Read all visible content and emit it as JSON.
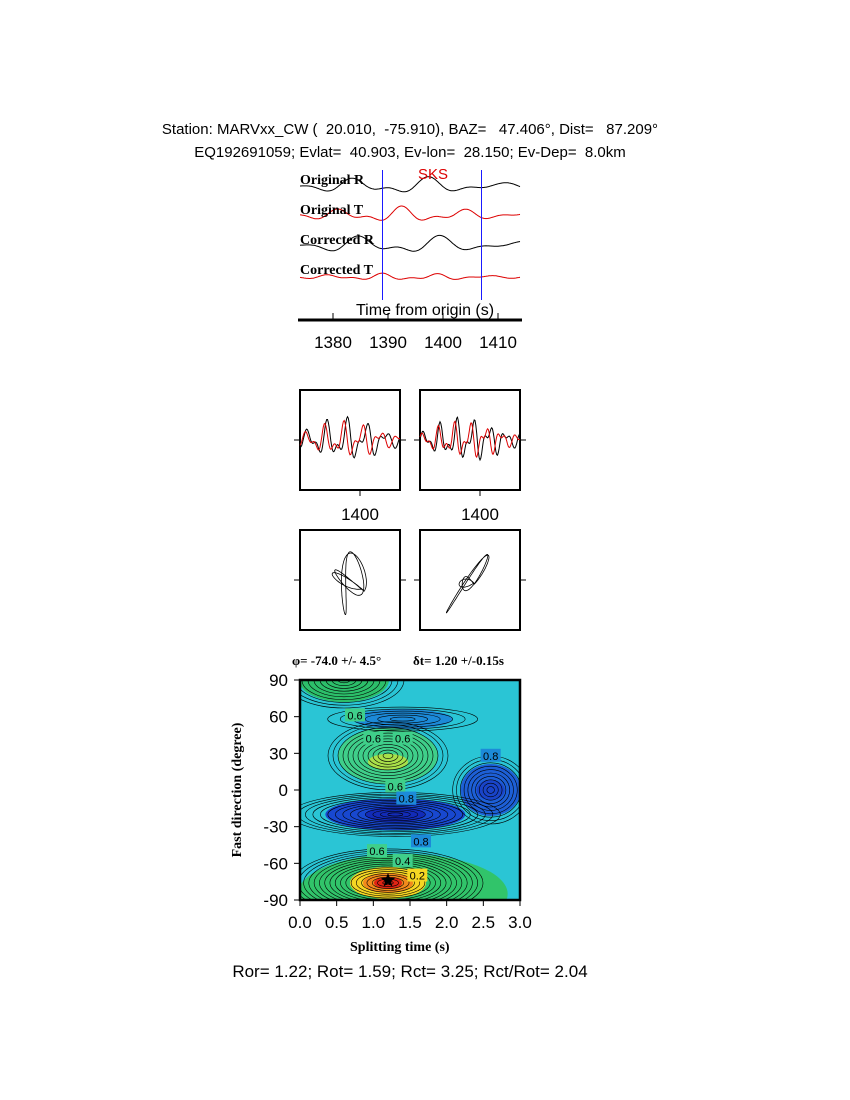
{
  "header": {
    "station_line": "Station: MARVxx_CW (  20.010,  -75.910), BAZ=   47.406°, Dist=   87.209°",
    "event_line": "EQ192691059; Evlat=  40.903, Ev-lon=  28.150; Ev-Dep=  8.0km"
  },
  "colors": {
    "trace_black": "#000000",
    "trace_red": "#dd0000",
    "marker_blue": "#1a1aff",
    "phase_label": "#dd0000"
  },
  "chart_data": [
    {
      "type": "line",
      "panel": "waveforms",
      "phase_label": "SKS",
      "xlabel": "Time from origin (s)",
      "xlim": [
        1374,
        1414
      ],
      "xticks": [
        1380,
        1390,
        1400,
        1410
      ],
      "window_markers_s": [
        1389,
        1407
      ],
      "series": [
        {
          "name": "Original R",
          "color": "black"
        },
        {
          "name": "Original T",
          "color": "red"
        },
        {
          "name": "Corrected R",
          "color": "black"
        },
        {
          "name": "Corrected T",
          "color": "red"
        }
      ]
    },
    {
      "type": "line",
      "panel": "fast-slow-comparison",
      "xticks_left": [
        "1400"
      ],
      "xticks_right": [
        "1400"
      ]
    },
    {
      "type": "line",
      "panel": "particle-motion"
    },
    {
      "type": "heatmap",
      "panel": "grid-search",
      "title_phi": "φ= -74.0 +/- 4.5°",
      "title_dt": "δt= 1.20 +/-0.15s",
      "xlabel": "Splitting time (s)",
      "ylabel": "Fast direction (degree)",
      "xlim": [
        0,
        3
      ],
      "ylim": [
        -90,
        90
      ],
      "xticks": [
        "0.0",
        "0.5",
        "1.0",
        "1.5",
        "2.0",
        "2.5",
        "3.0"
      ],
      "yticks": [
        "90",
        "60",
        "30",
        "0",
        "-30",
        "-60",
        "-90"
      ],
      "best_fit": {
        "dt": 1.2,
        "phi": -74.0
      },
      "contour_labels": [
        {
          "text": "0.6",
          "x": 0.75,
          "y": 61
        },
        {
          "text": "0.6",
          "x": 1.0,
          "y": 42
        },
        {
          "text": "0.6",
          "x": 1.4,
          "y": 42
        },
        {
          "text": "0.6",
          "x": 1.3,
          "y": 3
        },
        {
          "text": "0.8",
          "x": 1.45,
          "y": -7
        },
        {
          "text": "0.8",
          "x": 2.6,
          "y": 28
        },
        {
          "text": "0.8",
          "x": 1.65,
          "y": -42
        },
        {
          "text": "0.6",
          "x": 1.05,
          "y": -50
        },
        {
          "text": "0.4",
          "x": 1.4,
          "y": -58
        },
        {
          "text": "0.2",
          "x": 1.6,
          "y": -70
        }
      ]
    }
  ],
  "footer": "Ror= 1.22; Rot= 1.59; Rct= 3.25; Rct/Rot= 2.04"
}
